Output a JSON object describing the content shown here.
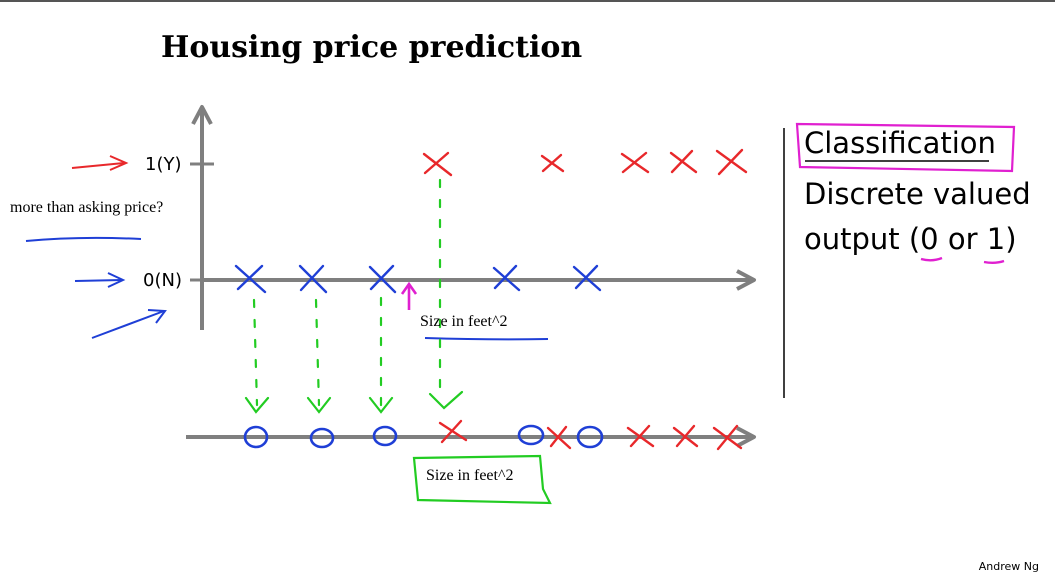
{
  "slide": {
    "title": "Housing price prediction",
    "question": "more than asking price?",
    "y_tick_top": "1(Y)",
    "y_tick_bottom": "0(N)",
    "x_axis_label_top": "Size in feet^2",
    "x_axis_label_bottom": "Size in feet^2",
    "right_heading": "Classification",
    "right_line1": "Discrete valued",
    "right_line2": "output (0 or 1)",
    "footer": "Andrew Ng"
  },
  "colors": {
    "axis": "#7f7f7f",
    "positive": "#e8282b",
    "negative": "#1f3fd6",
    "projection": "#22cc22",
    "highlight": "#e020d0"
  }
}
